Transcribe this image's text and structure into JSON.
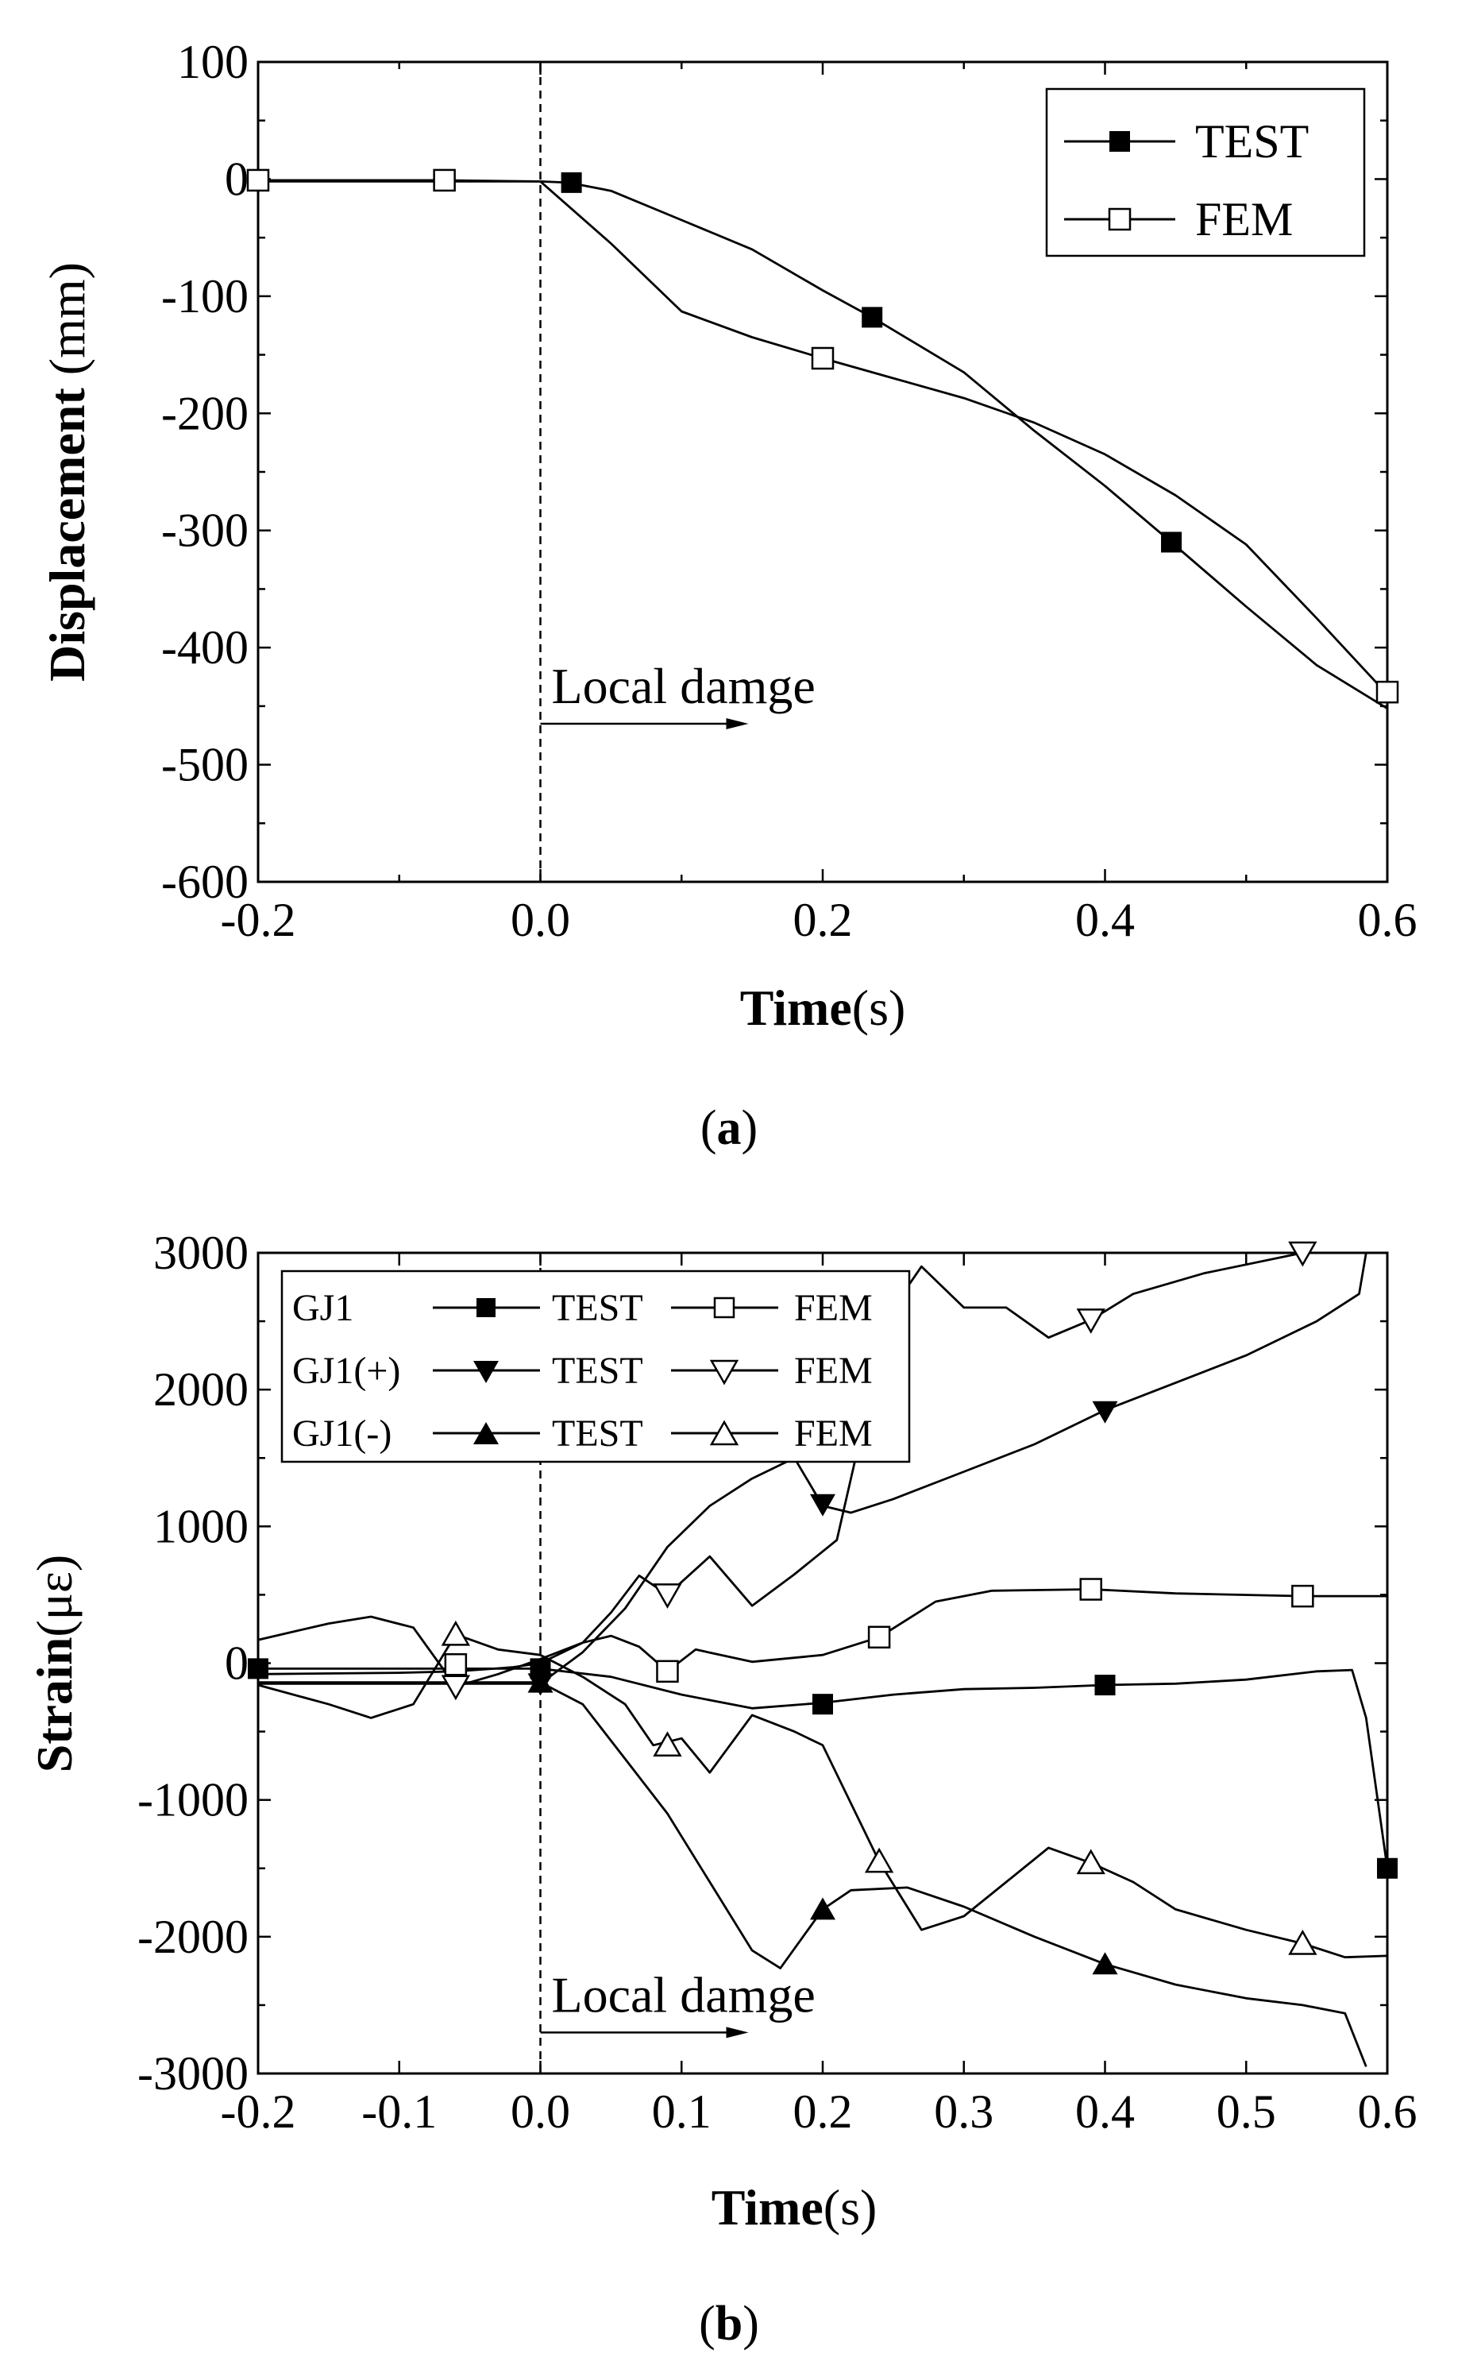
{
  "figure": {
    "caption_a": {
      "open": "(",
      "letter": "a",
      "close": ")"
    },
    "caption_b": {
      "open": "(",
      "letter": "b",
      "close": ")"
    }
  },
  "chart_data": [
    {
      "type": "line",
      "title": "",
      "xlabel": {
        "bold": "Time",
        "rest": "(s)"
      },
      "ylabel": {
        "bold": "Displacement",
        "rest": " (mm)"
      },
      "xlim": [
        -0.2,
        0.6
      ],
      "ylim": [
        -600,
        100
      ],
      "xticks": [
        "-0.2",
        "0.0",
        "0.2",
        "0.4",
        "0.6"
      ],
      "yticks": [
        "100",
        "0",
        "-100",
        "-200",
        "-300",
        "-400",
        "-500",
        "-600"
      ],
      "annotation": {
        "text": "Local damge",
        "x": 0.0,
        "y": -465
      },
      "series": [
        {
          "name": "TEST",
          "marker": "square-filled",
          "points": [
            [
              -0.2,
              -2
            ],
            [
              0.0,
              -2
            ],
            [
              0.02,
              -3
            ],
            [
              0.05,
              -10
            ],
            [
              0.1,
              -35
            ],
            [
              0.15,
              -60
            ],
            [
              0.2,
              -95
            ],
            [
              0.235,
              -118
            ],
            [
              0.3,
              -165
            ],
            [
              0.35,
              -215
            ],
            [
              0.4,
              -262
            ],
            [
              0.447,
              -310
            ],
            [
              0.5,
              -365
            ],
            [
              0.55,
              -415
            ],
            [
              0.6,
              -452
            ]
          ],
          "markers": [
            [
              0.022,
              -3
            ],
            [
              0.235,
              -118
            ],
            [
              0.447,
              -310
            ]
          ]
        },
        {
          "name": "FEM",
          "marker": "square-open",
          "points": [
            [
              -0.2,
              -1
            ],
            [
              -0.07,
              -1
            ],
            [
              0.0,
              -2
            ],
            [
              0.05,
              -55
            ],
            [
              0.1,
              -113
            ],
            [
              0.15,
              -135
            ],
            [
              0.2,
              -153
            ],
            [
              0.25,
              -170
            ],
            [
              0.3,
              -187
            ],
            [
              0.35,
              -208
            ],
            [
              0.4,
              -235
            ],
            [
              0.45,
              -270
            ],
            [
              0.5,
              -312
            ],
            [
              0.55,
              -375
            ],
            [
              0.6,
              -440
            ]
          ],
          "markers": [
            [
              -0.2,
              -1
            ],
            [
              -0.068,
              -1
            ],
            [
              0.2,
              -153
            ],
            [
              0.6,
              -438
            ]
          ]
        }
      ]
    },
    {
      "type": "line",
      "title": "",
      "xlabel": {
        "bold": "Time",
        "rest": "(s)"
      },
      "ylabel": {
        "bold": "Strain",
        "rest": "(με)"
      },
      "xlim": [
        -0.2,
        0.6
      ],
      "ylim": [
        -3000,
        3000
      ],
      "xticks": [
        "-0.2",
        "-0.1",
        "0.0",
        "0.1",
        "0.2",
        "0.3",
        "0.4",
        "0.5",
        "0.6"
      ],
      "yticks": [
        "3000",
        "2000",
        "1000",
        "0",
        "-1000",
        "-2000",
        "-3000"
      ],
      "annotation": {
        "text": "Local damge",
        "x": 0.0,
        "y": -2700
      },
      "legend": {
        "rows": [
          {
            "group": "GJ1",
            "test": "TEST",
            "fem": "FEM",
            "test_marker": "square-filled",
            "fem_marker": "square-open"
          },
          {
            "group": "GJ1(+)",
            "test": "TEST",
            "fem": "FEM",
            "test_marker": "tri-down-filled",
            "fem_marker": "tri-down-open"
          },
          {
            "group": "GJ1(-)",
            "test": "TEST",
            "fem": "FEM",
            "test_marker": "tri-up-filled",
            "fem_marker": "tri-up-open"
          }
        ]
      },
      "series": [
        {
          "name": "GJ1 TEST",
          "marker": "square-filled",
          "points": [
            [
              -0.2,
              -40
            ],
            [
              -0.1,
              -40
            ],
            [
              0.0,
              -40
            ],
            [
              0.05,
              -100
            ],
            [
              0.1,
              -230
            ],
            [
              0.15,
              -330
            ],
            [
              0.2,
              -290
            ],
            [
              0.25,
              -230
            ],
            [
              0.3,
              -190
            ],
            [
              0.35,
              -180
            ],
            [
              0.4,
              -160
            ],
            [
              0.45,
              -150
            ],
            [
              0.5,
              -120
            ],
            [
              0.55,
              -60
            ],
            [
              0.575,
              -50
            ],
            [
              0.585,
              -400
            ],
            [
              0.6,
              -1500
            ]
          ],
          "markers": [
            [
              -0.2,
              -40
            ],
            [
              0.0,
              -40
            ],
            [
              0.2,
              -300
            ],
            [
              0.4,
              -160
            ],
            [
              0.6,
              -1500
            ]
          ]
        },
        {
          "name": "GJ1 FEM",
          "marker": "square-open",
          "points": [
            [
              -0.2,
              -80
            ],
            [
              -0.1,
              -70
            ],
            [
              -0.06,
              -60
            ],
            [
              -0.02,
              -30
            ],
            [
              0.0,
              0
            ],
            [
              0.03,
              150
            ],
            [
              0.05,
              200
            ],
            [
              0.07,
              120
            ],
            [
              0.09,
              -60
            ],
            [
              0.11,
              100
            ],
            [
              0.15,
              10
            ],
            [
              0.2,
              60
            ],
            [
              0.24,
              190
            ],
            [
              0.28,
              450
            ],
            [
              0.32,
              530
            ],
            [
              0.39,
              540
            ],
            [
              0.45,
              510
            ],
            [
              0.54,
              490
            ],
            [
              0.6,
              490
            ]
          ],
          "markers": [
            [
              -0.06,
              -10
            ],
            [
              0.09,
              -60
            ],
            [
              0.24,
              190
            ],
            [
              0.39,
              540
            ],
            [
              0.54,
              490
            ]
          ]
        },
        {
          "name": "GJ1(+) TEST",
          "marker": "tri-down-filled",
          "points": [
            [
              -0.2,
              -150
            ],
            [
              -0.1,
              -150
            ],
            [
              0.0,
              -150
            ],
            [
              0.03,
              80
            ],
            [
              0.06,
              400
            ],
            [
              0.09,
              850
            ],
            [
              0.12,
              1150
            ],
            [
              0.15,
              1350
            ],
            [
              0.18,
              1500
            ],
            [
              0.2,
              1150
            ],
            [
              0.22,
              1100
            ],
            [
              0.25,
              1200
            ],
            [
              0.3,
              1400
            ],
            [
              0.35,
              1600
            ],
            [
              0.4,
              1850
            ],
            [
              0.45,
              2050
            ],
            [
              0.5,
              2250
            ],
            [
              0.55,
              2500
            ],
            [
              0.58,
              2700
            ],
            [
              0.585,
              3000
            ]
          ],
          "markers": [
            [
              0.0,
              -150
            ],
            [
              0.2,
              1160
            ],
            [
              0.4,
              1840
            ]
          ]
        },
        {
          "name": "GJ1(+) FEM",
          "marker": "tri-down-open",
          "points": [
            [
              -0.2,
              170
            ],
            [
              -0.15,
              290
            ],
            [
              -0.12,
              340
            ],
            [
              -0.09,
              260
            ],
            [
              -0.06,
              -170
            ],
            [
              -0.03,
              -80
            ],
            [
              0.0,
              30
            ],
            [
              0.03,
              150
            ],
            [
              0.05,
              370
            ],
            [
              0.07,
              640
            ],
            [
              0.09,
              500
            ],
            [
              0.12,
              780
            ],
            [
              0.15,
              420
            ],
            [
              0.18,
              650
            ],
            [
              0.21,
              900
            ],
            [
              0.23,
              1800
            ],
            [
              0.25,
              2600
            ],
            [
              0.27,
              2900
            ],
            [
              0.3,
              2600
            ],
            [
              0.33,
              2600
            ],
            [
              0.36,
              2380
            ],
            [
              0.39,
              2510
            ],
            [
              0.42,
              2700
            ],
            [
              0.47,
              2850
            ],
            [
              0.54,
              3000
            ],
            [
              0.6,
              3000
            ]
          ],
          "markers": [
            [
              -0.06,
              -170
            ],
            [
              0.09,
              500
            ],
            [
              0.39,
              2510
            ],
            [
              0.54,
              3000
            ]
          ]
        },
        {
          "name": "GJ1(-) TEST",
          "marker": "tri-up-filled",
          "points": [
            [
              -0.2,
              -140
            ],
            [
              -0.1,
              -140
            ],
            [
              0.0,
              -140
            ],
            [
              0.03,
              -300
            ],
            [
              0.06,
              -700
            ],
            [
              0.09,
              -1100
            ],
            [
              0.12,
              -1600
            ],
            [
              0.15,
              -2100
            ],
            [
              0.17,
              -2230
            ],
            [
              0.2,
              -1800
            ],
            [
              0.22,
              -1660
            ],
            [
              0.26,
              -1640
            ],
            [
              0.3,
              -1780
            ],
            [
              0.35,
              -2000
            ],
            [
              0.4,
              -2200
            ],
            [
              0.45,
              -2350
            ],
            [
              0.5,
              -2450
            ],
            [
              0.54,
              -2500
            ],
            [
              0.57,
              -2560
            ],
            [
              0.585,
              -2950
            ]
          ],
          "markers": [
            [
              0.0,
              -140
            ],
            [
              0.2,
              -1800
            ],
            [
              0.4,
              -2200
            ]
          ]
        },
        {
          "name": "GJ1(-) FEM",
          "marker": "tri-up-open",
          "points": [
            [
              -0.2,
              -160
            ],
            [
              -0.15,
              -300
            ],
            [
              -0.12,
              -400
            ],
            [
              -0.09,
              -300
            ],
            [
              -0.06,
              210
            ],
            [
              -0.03,
              100
            ],
            [
              0.0,
              60
            ],
            [
              0.03,
              -100
            ],
            [
              0.06,
              -300
            ],
            [
              0.08,
              -600
            ],
            [
              0.1,
              -550
            ],
            [
              0.12,
              -800
            ],
            [
              0.15,
              -380
            ],
            [
              0.18,
              -500
            ],
            [
              0.2,
              -600
            ],
            [
              0.24,
              -1450
            ],
            [
              0.27,
              -1950
            ],
            [
              0.3,
              -1850
            ],
            [
              0.33,
              -1600
            ],
            [
              0.36,
              -1350
            ],
            [
              0.39,
              -1460
            ],
            [
              0.42,
              -1600
            ],
            [
              0.45,
              -1800
            ],
            [
              0.5,
              -1950
            ],
            [
              0.54,
              -2050
            ],
            [
              0.57,
              -2150
            ],
            [
              0.6,
              -2140
            ]
          ],
          "markers": [
            [
              -0.06,
              210
            ],
            [
              0.09,
              -600
            ],
            [
              0.24,
              -1450
            ],
            [
              0.39,
              -1460
            ],
            [
              0.54,
              -2050
            ]
          ]
        }
      ]
    }
  ]
}
